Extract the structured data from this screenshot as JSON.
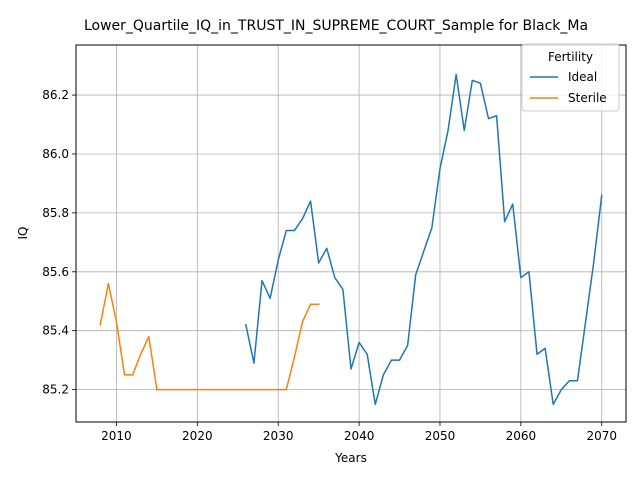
{
  "chart_data": {
    "type": "line",
    "title": "Lower_Quartile_IQ_in_TRUST_IN_SUPREME_COURT_Sample for Black_Ma",
    "xlabel": "Years",
    "ylabel": "IQ",
    "xlim": [
      2005,
      2073
    ],
    "ylim": [
      85.09,
      86.37
    ],
    "xticks": [
      2010,
      2020,
      2030,
      2040,
      2050,
      2060,
      2070
    ],
    "yticks": [
      85.2,
      85.4,
      85.6,
      85.8,
      86.0,
      86.2
    ],
    "ytick_labels": [
      "85.2",
      "85.4",
      "85.6",
      "85.8",
      "86.0",
      "86.2"
    ],
    "grid": true,
    "legend": {
      "title": "Fertility",
      "placement": "top-right"
    },
    "series": [
      {
        "name": "Ideal",
        "color": "#1f77b4",
        "x": [
          2026,
          2027,
          2028,
          2029,
          2030,
          2031,
          2032,
          2033,
          2034,
          2035,
          2036,
          2037,
          2038,
          2039,
          2040,
          2041,
          2042,
          2043,
          2044,
          2045,
          2046,
          2047,
          2048,
          2049,
          2050,
          2051,
          2052,
          2053,
          2054,
          2055,
          2056,
          2057,
          2058,
          2059,
          2060,
          2061,
          2062,
          2063,
          2064,
          2065,
          2066,
          2067,
          2068,
          2069,
          2070
        ],
        "values": [
          85.42,
          85.29,
          85.57,
          85.51,
          85.64,
          85.74,
          85.74,
          85.78,
          85.84,
          85.63,
          85.68,
          85.58,
          85.54,
          85.27,
          85.36,
          85.32,
          85.15,
          85.25,
          85.3,
          85.3,
          85.35,
          85.59,
          85.67,
          85.75,
          85.95,
          86.08,
          86.27,
          86.08,
          86.25,
          86.24,
          86.12,
          86.13,
          85.77,
          85.83,
          85.58,
          85.6,
          85.32,
          85.34,
          85.15,
          85.2,
          85.23,
          85.23,
          85.43,
          85.63,
          85.86
        ]
      },
      {
        "name": "Sterile",
        "color": "#ff7f0e",
        "x": [
          2008,
          2009,
          2010,
          2011,
          2012,
          2013,
          2014,
          2015,
          2016,
          2017,
          2018,
          2019,
          2020,
          2021,
          2022,
          2023,
          2024,
          2025,
          2026,
          2027,
          2028,
          2029,
          2030,
          2031,
          2032,
          2033,
          2034,
          2035
        ],
        "values": [
          85.42,
          85.56,
          85.43,
          85.25,
          85.25,
          85.32,
          85.38,
          85.2,
          85.2,
          85.2,
          85.2,
          85.2,
          85.2,
          85.2,
          85.2,
          85.2,
          85.2,
          85.2,
          85.2,
          85.2,
          85.2,
          85.2,
          85.2,
          85.2,
          85.31,
          85.43,
          85.49,
          85.49
        ]
      }
    ]
  }
}
